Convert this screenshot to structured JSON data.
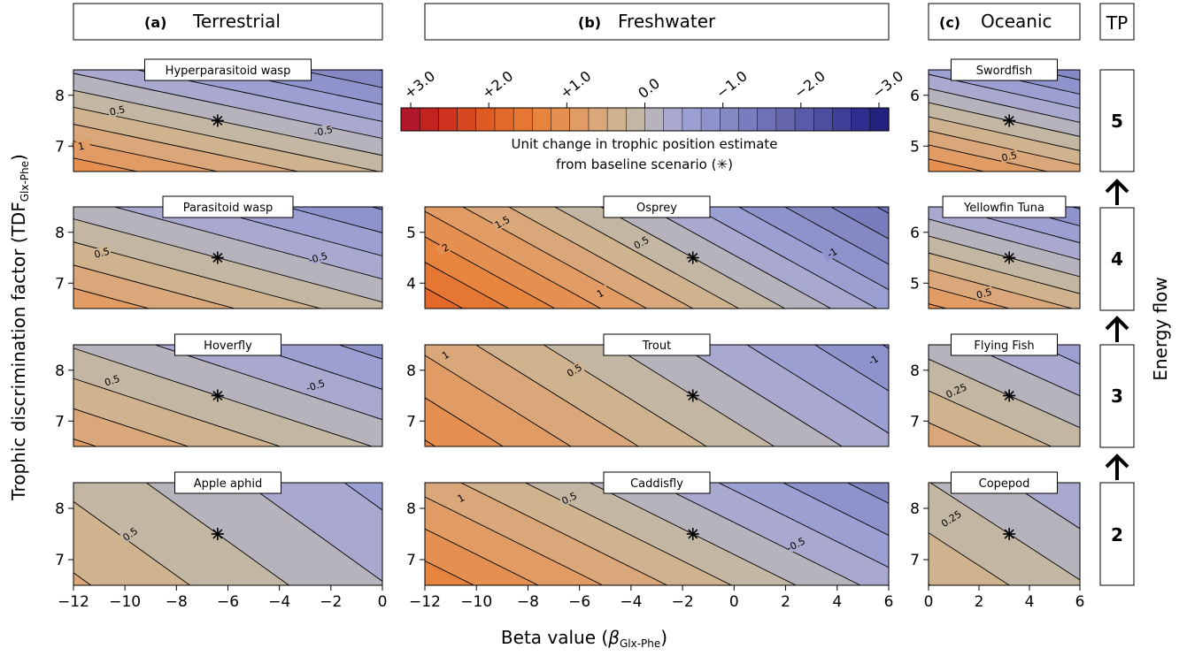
{
  "figure": {
    "ylabel_main": "Trophic discrimination factor (TDF",
    "ylabel_sub": "Glx-Phe",
    "ylabel_close": ")",
    "xlabel_main": "Beta value (",
    "xlabel_beta": "β",
    "xlabel_sub": "Glx-Phe",
    "xlabel_close": ")",
    "energy_flow_label": "Energy flow",
    "tp_header": "TP"
  },
  "columns": [
    {
      "key": "a",
      "letter": "(a)",
      "name": "Terrestrial"
    },
    {
      "key": "b",
      "letter": "(b)",
      "name": "Freshwater"
    },
    {
      "key": "c",
      "letter": "(c)",
      "name": "Oceanic"
    }
  ],
  "trophic_positions": [
    "5",
    "4",
    "3",
    "2"
  ],
  "colorbar": {
    "ticks": [
      "+3.0",
      "+2.0",
      "+1.0",
      "0.0",
      "−1.0",
      "−2.0",
      "−3.0"
    ],
    "label_line1": "Unit change in trophic position estimate",
    "label_line2": "from baseline scenario (",
    "label_star": "✳",
    "label_close": ")",
    "levels": [
      3.0,
      2.75,
      2.5,
      2.25,
      2.0,
      1.75,
      1.5,
      1.25,
      1.0,
      0.75,
      0.5,
      0.25,
      0.0,
      -0.25,
      -0.5,
      -0.75,
      -1.0,
      -1.25,
      -1.5,
      -1.75,
      -2.0,
      -2.25,
      -2.5,
      -2.75,
      -3.0
    ],
    "colors": [
      "#b2182b",
      "#c1231f",
      "#cd331e",
      "#d6481f",
      "#de5b24",
      "#e3692a",
      "#e67732",
      "#e7843e",
      "#e59050",
      "#e09c64",
      "#d9a779",
      "#cfb28e",
      "#c3b7a3",
      "#b7b3bd",
      "#a9a9d0",
      "#9b9fd1",
      "#8e94cb",
      "#8489c3",
      "#797dbd",
      "#6f71b6",
      "#6566ae",
      "#5a5ba8",
      "#4d4ea0",
      "#3f3f97",
      "#2f2e8e",
      "#23227f"
    ]
  },
  "chart_data": [
    {
      "type": "heatmap",
      "panel": "a",
      "tp": "5",
      "species": "Hyperparasitoid wasp",
      "xlim": [
        -12,
        0
      ],
      "ylim": [
        6.5,
        8.5
      ],
      "yticks": [
        "7",
        "8"
      ],
      "xticks": [],
      "baseline": {
        "x": -6.4,
        "y": 7.5
      },
      "contour_labels": [
        {
          "text": "1",
          "x": -11.7,
          "y": 7.0
        },
        {
          "text": "0.5",
          "x": -10.3,
          "y": 7.7
        },
        {
          "text": "-0.5",
          "x": -2.3,
          "y": 7.3
        }
      ],
      "surface": {
        "a": -0.08,
        "b": -0.75,
        "x0": -6.4,
        "y0": 7.5
      }
    },
    {
      "type": "heatmap",
      "panel": "a",
      "tp": "4",
      "species": "Parasitoid wasp",
      "xlim": [
        -12,
        0
      ],
      "ylim": [
        6.5,
        8.5
      ],
      "yticks": [
        "7",
        "8"
      ],
      "xticks": [],
      "baseline": {
        "x": -6.4,
        "y": 7.5
      },
      "contour_labels": [
        {
          "text": "0.5",
          "x": -10.9,
          "y": 7.6
        },
        {
          "text": "-0.5",
          "x": -2.5,
          "y": 7.5
        }
      ],
      "surface": {
        "a": -0.075,
        "b": -0.55,
        "x0": -6.4,
        "y0": 7.5
      }
    },
    {
      "type": "heatmap",
      "panel": "a",
      "tp": "3",
      "species": "Hoverfly",
      "xlim": [
        -12,
        0
      ],
      "ylim": [
        6.5,
        8.5
      ],
      "yticks": [
        "7",
        "8"
      ],
      "xticks": [],
      "baseline": {
        "x": -6.4,
        "y": 7.5
      },
      "contour_labels": [
        {
          "text": "0.5",
          "x": -10.5,
          "y": 7.8
        },
        {
          "text": "-0.5",
          "x": -2.6,
          "y": 7.7
        }
      ],
      "surface": {
        "a": -0.07,
        "b": -0.42,
        "x0": -6.4,
        "y0": 7.5
      }
    },
    {
      "type": "heatmap",
      "panel": "a",
      "tp": "2",
      "species": "Apple aphid",
      "xlim": [
        -12,
        0
      ],
      "ylim": [
        6.5,
        8.5
      ],
      "yticks": [
        "7",
        "8"
      ],
      "xticks": [
        "−12",
        "−10",
        "−8",
        "−6",
        "−4",
        "−2",
        "0"
      ],
      "baseline": {
        "x": -6.4,
        "y": 7.5
      },
      "contour_labels": [
        {
          "text": "0.5",
          "x": -9.8,
          "y": 7.5
        }
      ],
      "surface": {
        "a": -0.065,
        "b": -0.18,
        "x0": -6.4,
        "y0": 7.5
      }
    },
    {
      "type": "heatmap",
      "panel": "b",
      "tp": "4",
      "species": "Osprey",
      "xlim": [
        -12,
        6
      ],
      "ylim": [
        3.5,
        5.5
      ],
      "yticks": [
        "4",
        "5"
      ],
      "xticks": [],
      "baseline": {
        "x": -1.6,
        "y": 4.5
      },
      "contour_labels": [
        {
          "text": "2",
          "x": -11.2,
          "y": 4.7
        },
        {
          "text": "1.5",
          "x": -9.0,
          "y": 5.2
        },
        {
          "text": "1",
          "x": -5.2,
          "y": 3.8
        },
        {
          "text": "0.5",
          "x": -3.6,
          "y": 4.8
        },
        {
          "text": "-1",
          "x": 3.8,
          "y": 4.6
        }
      ],
      "surface": {
        "a": -0.14,
        "b": -0.5,
        "x0": -1.6,
        "y0": 4.5
      }
    },
    {
      "type": "heatmap",
      "panel": "b",
      "tp": "3",
      "species": "Trout",
      "xlim": [
        -12,
        6
      ],
      "ylim": [
        6.5,
        8.5
      ],
      "yticks": [
        "7",
        "8"
      ],
      "xticks": [],
      "baseline": {
        "x": -1.6,
        "y": 7.5
      },
      "contour_labels": [
        {
          "text": "1",
          "x": -11.2,
          "y": 8.3
        },
        {
          "text": "0.5",
          "x": -6.2,
          "y": 8.0
        },
        {
          "text": "-1",
          "x": 5.4,
          "y": 8.2
        }
      ],
      "surface": {
        "a": -0.095,
        "b": -0.3,
        "x0": -1.6,
        "y0": 7.5
      }
    },
    {
      "type": "heatmap",
      "panel": "b",
      "tp": "2",
      "species": "Caddisfly",
      "xlim": [
        -12,
        6
      ],
      "ylim": [
        6.5,
        8.5
      ],
      "yticks": [
        "7",
        "8"
      ],
      "xticks": [
        "−12",
        "−10",
        "−8",
        "−6",
        "−4",
        "−2",
        "0",
        "2",
        "4",
        "6"
      ],
      "baseline": {
        "x": -1.6,
        "y": 7.5
      },
      "contour_labels": [
        {
          "text": "1",
          "x": -10.6,
          "y": 8.2
        },
        {
          "text": "0.5",
          "x": -6.4,
          "y": 8.2
        },
        {
          "text": "-0.5",
          "x": 2.4,
          "y": 7.3
        }
      ],
      "surface": {
        "a": -0.1,
        "b": -0.4,
        "x0": -1.6,
        "y0": 7.5
      }
    },
    {
      "type": "heatmap",
      "panel": "c",
      "tp": "5",
      "species": "Swordfish",
      "xlim": [
        0,
        6
      ],
      "ylim": [
        4.5,
        6.5
      ],
      "yticks": [
        "5",
        "6"
      ],
      "xticks": [],
      "baseline": {
        "x": 3.2,
        "y": 5.5
      },
      "contour_labels": [
        {
          "text": "0.5",
          "x": 3.2,
          "y": 4.8
        }
      ],
      "surface": {
        "a": -0.1,
        "b": -0.9,
        "x0": 3.2,
        "y0": 5.5
      }
    },
    {
      "type": "heatmap",
      "panel": "c",
      "tp": "4",
      "species": "Yellowfin Tuna",
      "xlim": [
        0,
        6
      ],
      "ylim": [
        4.5,
        6.5
      ],
      "yticks": [
        "5",
        "6"
      ],
      "xticks": [],
      "baseline": {
        "x": 3.2,
        "y": 5.5
      },
      "contour_labels": [
        {
          "text": "0.5",
          "x": 2.2,
          "y": 4.8
        }
      ],
      "surface": {
        "a": -0.1,
        "b": -0.75,
        "x0": 3.2,
        "y0": 5.5
      }
    },
    {
      "type": "heatmap",
      "panel": "c",
      "tp": "3",
      "species": "Flying Fish",
      "xlim": [
        0,
        6
      ],
      "ylim": [
        6.5,
        8.5
      ],
      "yticks": [
        "7",
        "8"
      ],
      "xticks": [],
      "baseline": {
        "x": 3.2,
        "y": 7.5
      },
      "contour_labels": [
        {
          "text": "0.25",
          "x": 1.1,
          "y": 7.6
        }
      ],
      "surface": {
        "a": -0.09,
        "b": -0.4,
        "x0": 3.2,
        "y0": 7.5
      }
    },
    {
      "type": "heatmap",
      "panel": "c",
      "tp": "2",
      "species": "Copepod",
      "xlim": [
        0,
        6
      ],
      "ylim": [
        6.5,
        8.5
      ],
      "yticks": [
        "7",
        "8"
      ],
      "xticks": [
        "0",
        "2",
        "4",
        "6"
      ],
      "baseline": {
        "x": 3.2,
        "y": 7.5
      },
      "contour_labels": [
        {
          "text": "0.25",
          "x": 0.9,
          "y": 7.8
        }
      ],
      "surface": {
        "a": -0.08,
        "b": -0.25,
        "x0": 3.2,
        "y0": 7.5
      }
    }
  ]
}
